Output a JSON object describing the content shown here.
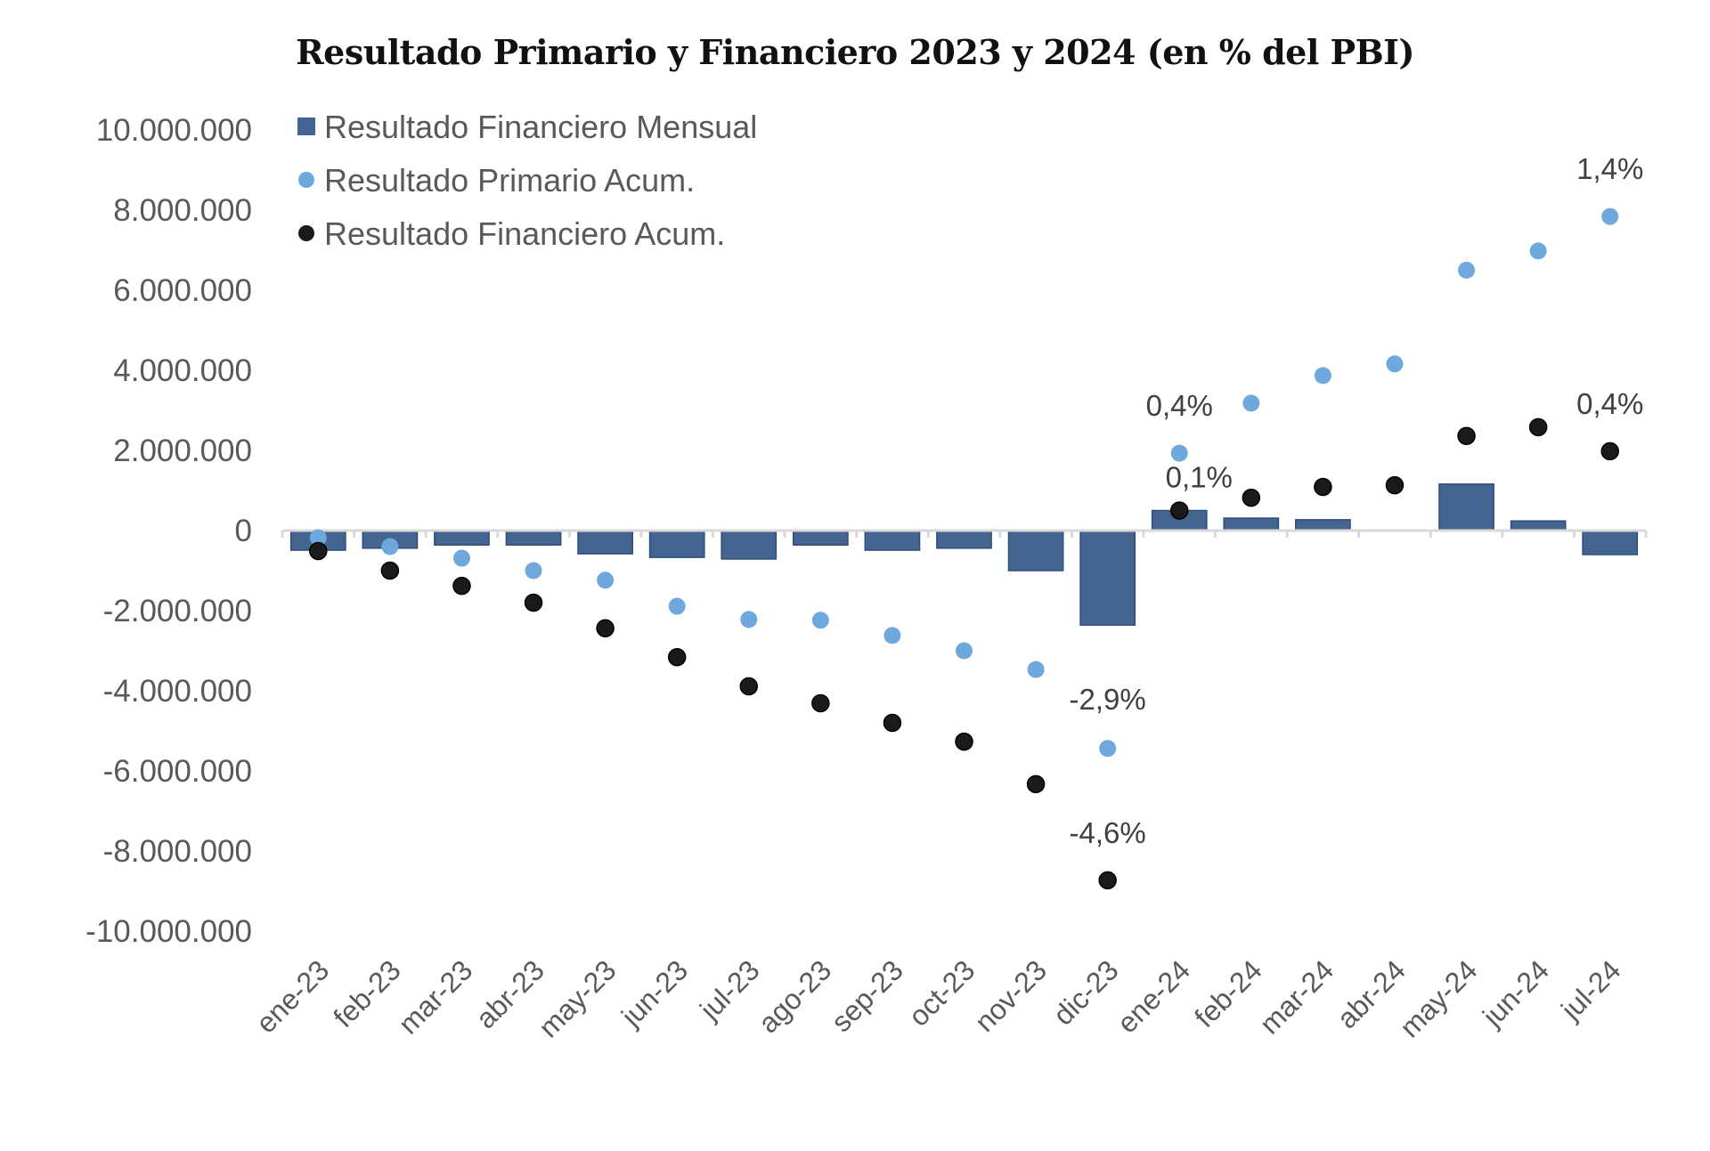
{
  "chart_data": {
    "type": "bar",
    "title": "Resultado Primario y Financiero 2023 y 2024 (en % del PBI)",
    "xlabel": "",
    "ylabel": "",
    "ylim": [
      -10000000,
      10000000
    ],
    "yticks": [
      10000000,
      8000000,
      6000000,
      4000000,
      2000000,
      0,
      -2000000,
      -4000000,
      -6000000,
      -8000000,
      -10000000
    ],
    "ytick_labels": [
      "10.000.000",
      "8.000.000",
      "6.000.000",
      "4.000.000",
      "2.000.000",
      "0",
      "-2.000.000",
      "-4.000.000",
      "-6.000.000",
      "-8.000.000",
      "-10.000.000"
    ],
    "grid": false,
    "legend_position": "top-left",
    "categories": [
      "ene-23",
      "feb-23",
      "mar-23",
      "abr-23",
      "may-23",
      "jun-23",
      "jul-23",
      "ago-23",
      "sep-23",
      "oct-23",
      "nov-23",
      "dic-23",
      "ene-24",
      "feb-24",
      "mar-24",
      "abr-24",
      "may-24",
      "jun-24",
      "jul-24"
    ],
    "series": [
      {
        "name": "Resultado Financiero Mensual",
        "kind": "bar",
        "color": "#44658f",
        "values": [
          -490000,
          -440000,
          -360000,
          -360000,
          -580000,
          -670000,
          -710000,
          -360000,
          -490000,
          -440000,
          -1000000,
          -2360000,
          500000,
          310000,
          270000,
          0,
          1160000,
          240000,
          -600000
        ]
      },
      {
        "name": "Resultado Primario Acum.",
        "kind": "scatter",
        "color": "#6fa8dc",
        "values": [
          -180000,
          -400000,
          -690000,
          -1000000,
          -1240000,
          -1890000,
          -2220000,
          -2240000,
          -2620000,
          -3000000,
          -3470000,
          -5440000,
          1930000,
          3180000,
          3870000,
          4160000,
          6500000,
          6980000,
          7840000
        ]
      },
      {
        "name": "Resultado Financiero Acum.",
        "kind": "scatter",
        "color": "#1a1a1a",
        "values": [
          -510000,
          -1000000,
          -1380000,
          -1800000,
          -2440000,
          -3160000,
          -3890000,
          -4310000,
          -4800000,
          -5270000,
          -6330000,
          -8730000,
          500000,
          820000,
          1090000,
          1130000,
          2360000,
          2580000,
          1980000
        ]
      }
    ],
    "annotations": [
      {
        "text": "-2,9%",
        "category": "dic-23",
        "series": "Resultado Primario Acum.",
        "position": "above"
      },
      {
        "text": "-4,6%",
        "category": "dic-23",
        "series": "Resultado Financiero Acum.",
        "position": "above"
      },
      {
        "text": "0,4%",
        "category": "ene-24",
        "series": "Resultado Primario Acum.",
        "position": "above"
      },
      {
        "text": "0,1%",
        "category": "ene-24",
        "series": "Resultado Financiero Acum.",
        "position": "above"
      },
      {
        "text": "1,4%",
        "category": "jul-24",
        "series": "Resultado Primario Acum.",
        "position": "above"
      },
      {
        "text": "0,4%",
        "category": "jul-24",
        "series": "Resultado Financiero Acum.",
        "position": "above"
      }
    ]
  }
}
